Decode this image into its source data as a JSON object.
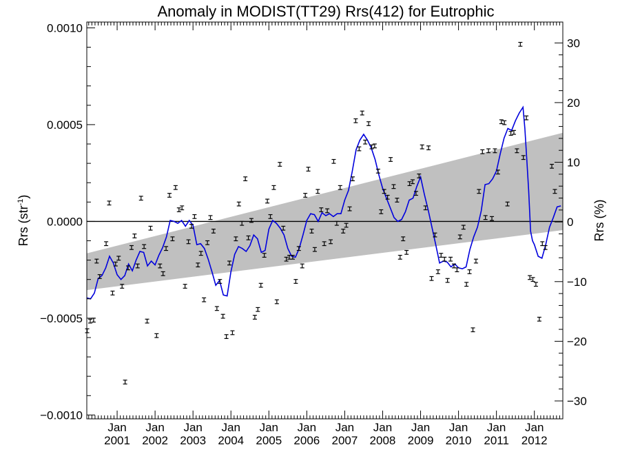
{
  "chart_data": {
    "type": "scatter",
    "title": "Anomaly in MODIST(TT29) Rrs(412) for Eutrophic",
    "ylabel_left_base": "Rrs (str",
    "ylabel_left_sup": "-1",
    "ylabel_left_end": ")",
    "ylabel_right": "Rrs (%)",
    "x_range": [
      2000.2,
      2012.75
    ],
    "ylim_left": [
      -0.00102,
      0.00103
    ],
    "ylim_right": [
      -33.0,
      33.5
    ],
    "left_ticks": [
      {
        "v": 0.001,
        "label": "0.0010"
      },
      {
        "v": 0.0005,
        "label": "0.0005"
      },
      {
        "v": 0.0,
        "label": "0.0000"
      },
      {
        "v": -0.0005,
        "label": "−0.0005"
      },
      {
        "v": -0.001,
        "label": "−0.0010"
      }
    ],
    "right_ticks": [
      {
        "v": 30,
        "label": "30"
      },
      {
        "v": 20,
        "label": "20"
      },
      {
        "v": 10,
        "label": "10"
      },
      {
        "v": 0,
        "label": "0"
      },
      {
        "v": -10,
        "label": "−10"
      },
      {
        "v": -20,
        "label": "−20"
      },
      {
        "v": -30,
        "label": "−30"
      }
    ],
    "x_ticks": [
      {
        "v": 2001.0,
        "month": "Jan",
        "year": "2001"
      },
      {
        "v": 2002.0,
        "month": "Jan",
        "year": "2002"
      },
      {
        "v": 2003.0,
        "month": "Jan",
        "year": "2003"
      },
      {
        "v": 2004.0,
        "month": "Jan",
        "year": "2004"
      },
      {
        "v": 2005.0,
        "month": "Jan",
        "year": "2005"
      },
      {
        "v": 2006.0,
        "month": "Jan",
        "year": "2006"
      },
      {
        "v": 2007.0,
        "month": "Jan",
        "year": "2007"
      },
      {
        "v": 2008.0,
        "month": "Jan",
        "year": "2008"
      },
      {
        "v": 2009.0,
        "month": "Jan",
        "year": "2009"
      },
      {
        "v": 2010.0,
        "month": "Jan",
        "year": "2010"
      },
      {
        "v": 2011.0,
        "month": "Jan",
        "year": "2011"
      },
      {
        "v": 2012.0,
        "month": "Jan",
        "year": "2012"
      }
    ],
    "band": {
      "x": [
        2000.2,
        2012.75
      ],
      "upper": [
        -0.000165,
        0.000458
      ],
      "lower": [
        -0.000355,
        -4.5e-05
      ]
    },
    "points": [
      [
        2000.21,
        -0.000565
      ],
      [
        2000.29,
        -0.000515
      ],
      [
        2000.38,
        -0.00051
      ],
      [
        2000.46,
        -0.000205
      ],
      [
        2000.54,
        -0.000285
      ],
      [
        2000.71,
        -0.000115
      ],
      [
        2000.79,
        9.5e-05
      ],
      [
        2000.88,
        -0.00037
      ],
      [
        2000.96,
        -0.00022
      ],
      [
        2001.04,
        -0.00019
      ],
      [
        2001.13,
        -0.000335
      ],
      [
        2001.21,
        -0.00083
      ],
      [
        2001.29,
        -0.00024
      ],
      [
        2001.38,
        -0.000135
      ],
      [
        2001.46,
        -7.5e-05
      ],
      [
        2001.54,
        -0.00023
      ],
      [
        2001.63,
        0.00012
      ],
      [
        2001.71,
        -0.00013
      ],
      [
        2001.79,
        -0.000515
      ],
      [
        2001.88,
        -3.5e-05
      ],
      [
        2002.04,
        -0.00059
      ],
      [
        2002.13,
        -0.00023
      ],
      [
        2002.21,
        -0.00027
      ],
      [
        2002.29,
        -0.00014
      ],
      [
        2002.38,
        0.000135
      ],
      [
        2002.46,
        -9e-05
      ],
      [
        2002.54,
        0.000175
      ],
      [
        2002.63,
        6e-05
      ],
      [
        2002.71,
        7e-05
      ],
      [
        2002.79,
        -0.000335
      ],
      [
        2002.88,
        -0.000105
      ],
      [
        2002.96,
        -2.5e-05
      ],
      [
        2003.04,
        2.5e-05
      ],
      [
        2003.13,
        -0.000225
      ],
      [
        2003.21,
        -0.000165
      ],
      [
        2003.29,
        -0.000405
      ],
      [
        2003.38,
        -0.00011
      ],
      [
        2003.46,
        2e-05
      ],
      [
        2003.54,
        -5e-05
      ],
      [
        2003.63,
        -0.00045
      ],
      [
        2003.71,
        -0.00031
      ],
      [
        2003.79,
        -0.00049
      ],
      [
        2003.88,
        -0.000595
      ],
      [
        2003.96,
        -0.000215
      ],
      [
        2004.04,
        -0.000575
      ],
      [
        2004.13,
        -9e-05
      ],
      [
        2004.21,
        9e-05
      ],
      [
        2004.29,
        -1e-05
      ],
      [
        2004.38,
        0.00022
      ],
      [
        2004.46,
        -8.5e-05
      ],
      [
        2004.54,
        5e-06
      ],
      [
        2004.63,
        -0.000495
      ],
      [
        2004.71,
        -0.000455
      ],
      [
        2004.79,
        -0.00033
      ],
      [
        2004.88,
        -0.000175
      ],
      [
        2004.96,
        0.000105
      ],
      [
        2005.04,
        2.5e-05
      ],
      [
        2005.13,
        0.000175
      ],
      [
        2005.21,
        -0.000415
      ],
      [
        2005.29,
        0.000295
      ],
      [
        2005.38,
        -3.5e-05
      ],
      [
        2005.46,
        -0.000195
      ],
      [
        2005.54,
        -0.000185
      ],
      [
        2005.63,
        -0.000185
      ],
      [
        2005.71,
        -0.00031
      ],
      [
        2005.79,
        -0.00014
      ],
      [
        2005.88,
        -0.00023
      ],
      [
        2005.96,
        0.000135
      ],
      [
        2006.04,
        0.00027
      ],
      [
        2006.13,
        -5e-05
      ],
      [
        2006.21,
        -0.000145
      ],
      [
        2006.29,
        0.000155
      ],
      [
        2006.38,
        6e-05
      ],
      [
        2006.46,
        -0.000115
      ],
      [
        2006.54,
        5.5e-05
      ],
      [
        2006.63,
        -0.000105
      ],
      [
        2006.71,
        0.00031
      ],
      [
        2006.79,
        -1e-05
      ],
      [
        2006.88,
        0.000175
      ],
      [
        2006.96,
        -5e-05
      ],
      [
        2007.04,
        -2e-05
      ],
      [
        2007.13,
        6.5e-05
      ],
      [
        2007.21,
        0.00022
      ],
      [
        2007.29,
        0.00052
      ],
      [
        2007.38,
        0.000375
      ],
      [
        2007.46,
        0.00056
      ],
      [
        2007.54,
        0.00041
      ],
      [
        2007.63,
        0.000505
      ],
      [
        2007.71,
        0.000385
      ],
      [
        2007.79,
        0.00039
      ],
      [
        2007.88,
        0.00026
      ],
      [
        2007.96,
        5e-05
      ],
      [
        2008.04,
        0.000155
      ],
      [
        2008.13,
        0.000125
      ],
      [
        2008.21,
        0.00032
      ],
      [
        2008.29,
        0.00018
      ],
      [
        2008.38,
        0.00011
      ],
      [
        2008.46,
        -0.000185
      ],
      [
        2008.54,
        -9e-05
      ],
      [
        2008.63,
        -0.00016
      ],
      [
        2008.71,
        0.000195
      ],
      [
        2008.79,
        0.000205
      ],
      [
        2008.88,
        0.000145
      ],
      [
        2008.96,
        0.000235
      ],
      [
        2009.04,
        0.000385
      ],
      [
        2009.13,
        7e-05
      ],
      [
        2009.21,
        0.00038
      ],
      [
        2009.29,
        -0.000295
      ],
      [
        2009.38,
        -7e-05
      ],
      [
        2009.46,
        -0.00026
      ],
      [
        2009.54,
        -0.000175
      ],
      [
        2009.63,
        -0.000195
      ],
      [
        2009.71,
        -0.000305
      ],
      [
        2009.79,
        -0.000195
      ],
      [
        2009.88,
        -0.00023
      ],
      [
        2009.96,
        -0.00025
      ],
      [
        2010.04,
        -8e-05
      ],
      [
        2010.13,
        -3e-05
      ],
      [
        2010.21,
        -0.000325
      ],
      [
        2010.29,
        -0.00026
      ],
      [
        2010.38,
        -0.00056
      ],
      [
        2010.46,
        -0.000205
      ],
      [
        2010.54,
        0.000155
      ],
      [
        2010.63,
        0.00036
      ],
      [
        2010.71,
        2e-05
      ],
      [
        2010.79,
        0.000365
      ],
      [
        2010.88,
        1.5e-05
      ],
      [
        2010.96,
        0.000365
      ],
      [
        2011.04,
        0.000255
      ],
      [
        2011.13,
        0.000515
      ],
      [
        2011.21,
        0.00051
      ],
      [
        2011.29,
        9e-05
      ],
      [
        2011.38,
        0.000455
      ],
      [
        2011.46,
        0.00046
      ],
      [
        2011.54,
        0.000365
      ],
      [
        2011.63,
        0.000915
      ],
      [
        2011.71,
        0.00033
      ],
      [
        2011.79,
        0.000535
      ],
      [
        2011.88,
        -0.00029
      ],
      [
        2011.96,
        -0.0003
      ],
      [
        2012.04,
        -0.000325
      ],
      [
        2012.13,
        -0.000505
      ],
      [
        2012.21,
        -0.000115
      ],
      [
        2012.29,
        -0.000135
      ],
      [
        2012.46,
        0.000285
      ],
      [
        2012.54,
        0.000155
      ]
    ],
    "smooth": [
      [
        2000.2,
        -0.000395
      ],
      [
        2000.3,
        -0.0004
      ],
      [
        2000.4,
        -0.00037
      ],
      [
        2000.5,
        -0.000295
      ],
      [
        2000.6,
        -0.00028
      ],
      [
        2000.7,
        -0.00024
      ],
      [
        2000.8,
        -0.00018
      ],
      [
        2000.9,
        -0.000215
      ],
      [
        2001.0,
        -0.000275
      ],
      [
        2001.1,
        -0.0003
      ],
      [
        2001.2,
        -0.00028
      ],
      [
        2001.3,
        -0.00022
      ],
      [
        2001.4,
        -0.000255
      ],
      [
        2001.5,
        -0.0002
      ],
      [
        2001.6,
        -0.000155
      ],
      [
        2001.7,
        -0.00016
      ],
      [
        2001.8,
        -0.00023
      ],
      [
        2001.9,
        -0.000205
      ],
      [
        2002.0,
        -0.000225
      ],
      [
        2002.1,
        -0.000175
      ],
      [
        2002.2,
        -0.000135
      ],
      [
        2002.3,
        -8e-05
      ],
      [
        2002.4,
        5e-06
      ],
      [
        2002.5,
        0.0
      ],
      [
        2002.6,
        -1e-05
      ],
      [
        2002.7,
        5e-06
      ],
      [
        2002.8,
        -2.5e-05
      ],
      [
        2002.9,
        5e-06
      ],
      [
        2003.0,
        -2e-05
      ],
      [
        2003.1,
        -0.00012
      ],
      [
        2003.2,
        -0.000115
      ],
      [
        2003.3,
        -0.00014
      ],
      [
        2003.4,
        -0.000195
      ],
      [
        2003.5,
        -0.00026
      ],
      [
        2003.6,
        -0.00033
      ],
      [
        2003.7,
        -0.000305
      ],
      [
        2003.8,
        -0.00038
      ],
      [
        2003.9,
        -0.000385
      ],
      [
        2004.0,
        -0.00026
      ],
      [
        2004.1,
        -0.00017
      ],
      [
        2004.2,
        -0.00013
      ],
      [
        2004.3,
        -0.00014
      ],
      [
        2004.4,
        -0.000155
      ],
      [
        2004.5,
        -0.000125
      ],
      [
        2004.6,
        -7e-05
      ],
      [
        2004.7,
        -9e-05
      ],
      [
        2004.8,
        -0.00016
      ],
      [
        2004.9,
        -0.00015
      ],
      [
        2005.0,
        -4e-05
      ],
      [
        2005.1,
        5e-06
      ],
      [
        2005.2,
        -1e-05
      ],
      [
        2005.3,
        -3.5e-05
      ],
      [
        2005.4,
        -7e-05
      ],
      [
        2005.5,
        -0.00014
      ],
      [
        2005.6,
        -0.00018
      ],
      [
        2005.7,
        -0.000185
      ],
      [
        2005.8,
        -0.00014
      ],
      [
        2005.9,
        -7e-05
      ],
      [
        2006.0,
        5e-06
      ],
      [
        2006.1,
        4e-05
      ],
      [
        2006.2,
        3.5e-05
      ],
      [
        2006.3,
        0.0
      ],
      [
        2006.4,
        4.5e-05
      ],
      [
        2006.5,
        3e-05
      ],
      [
        2006.6,
        4e-05
      ],
      [
        2006.7,
        2.5e-05
      ],
      [
        2006.8,
        4e-05
      ],
      [
        2006.9,
        4e-05
      ],
      [
        2007.0,
        0.00011
      ],
      [
        2007.1,
        0.00016
      ],
      [
        2007.2,
        0.00026
      ],
      [
        2007.3,
        0.00037
      ],
      [
        2007.4,
        0.00042
      ],
      [
        2007.5,
        0.00045
      ],
      [
        2007.6,
        0.00042
      ],
      [
        2007.7,
        0.00038
      ],
      [
        2007.8,
        0.00032
      ],
      [
        2007.9,
        0.00024
      ],
      [
        2008.0,
        0.00017
      ],
      [
        2008.1,
        0.00012
      ],
      [
        2008.2,
        7e-05
      ],
      [
        2008.3,
        2e-05
      ],
      [
        2008.4,
        0.0
      ],
      [
        2008.5,
        1e-05
      ],
      [
        2008.6,
        5e-05
      ],
      [
        2008.7,
        0.00011
      ],
      [
        2008.8,
        0.00012
      ],
      [
        2008.9,
        0.00018
      ],
      [
        2009.0,
        0.00023
      ],
      [
        2009.1,
        0.00014
      ],
      [
        2009.2,
        6e-05
      ],
      [
        2009.3,
        -3e-05
      ],
      [
        2009.4,
        -0.00012
      ],
      [
        2009.5,
        -0.000215
      ],
      [
        2009.6,
        -0.000205
      ],
      [
        2009.7,
        -0.00021
      ],
      [
        2009.8,
        -0.000235
      ],
      [
        2009.9,
        -0.00022
      ],
      [
        2010.0,
        -0.00024
      ],
      [
        2010.1,
        -0.000245
      ],
      [
        2010.2,
        -0.000235
      ],
      [
        2010.3,
        -0.000145
      ],
      [
        2010.4,
        -8e-05
      ],
      [
        2010.5,
        -3e-05
      ],
      [
        2010.6,
        5.5e-05
      ],
      [
        2010.7,
        0.00019
      ],
      [
        2010.8,
        0.000195
      ],
      [
        2010.9,
        0.00022
      ],
      [
        2011.0,
        0.00026
      ],
      [
        2011.1,
        0.00035
      ],
      [
        2011.2,
        0.00043
      ],
      [
        2011.3,
        0.00048
      ],
      [
        2011.4,
        0.00047
      ],
      [
        2011.5,
        0.00052
      ],
      [
        2011.6,
        0.00056
      ],
      [
        2011.7,
        0.00059
      ],
      [
        2011.75,
        0.00048
      ],
      [
        2011.8,
        0.00032
      ],
      [
        2011.85,
        0.00016
      ],
      [
        2011.9,
        -5e-05
      ],
      [
        2011.95,
        -0.0001
      ],
      [
        2012.0,
        -0.00012
      ],
      [
        2012.1,
        -0.00018
      ],
      [
        2012.2,
        -0.00019
      ],
      [
        2012.3,
        -0.00012
      ],
      [
        2012.4,
        -3e-05
      ],
      [
        2012.5,
        2e-05
      ],
      [
        2012.6,
        7.5e-05
      ],
      [
        2012.7,
        8e-05
      ]
    ],
    "error_half_height": 1e-05,
    "colors": {
      "band": "#c0c0c0",
      "smooth_line": "#0000dd",
      "points": "#000000",
      "zero_line": "#000000"
    }
  }
}
